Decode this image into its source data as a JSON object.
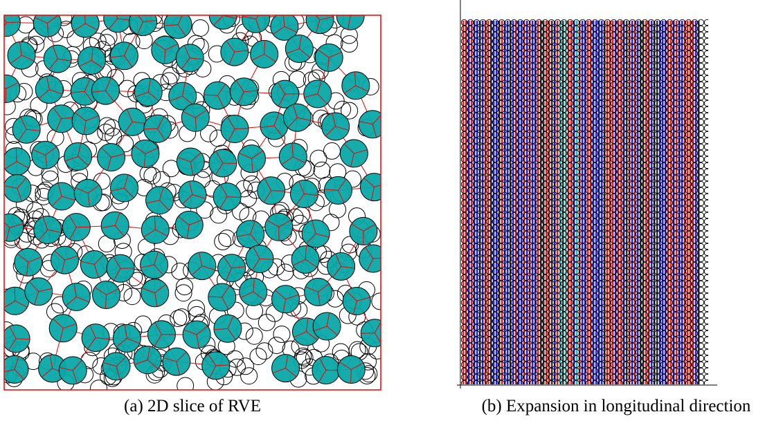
{
  "figure": {
    "subfigures": [
      {
        "caption": "(a) 2D slice of RVE"
      },
      {
        "caption": "(b) Expansion in longitudinal direction"
      }
    ]
  }
}
